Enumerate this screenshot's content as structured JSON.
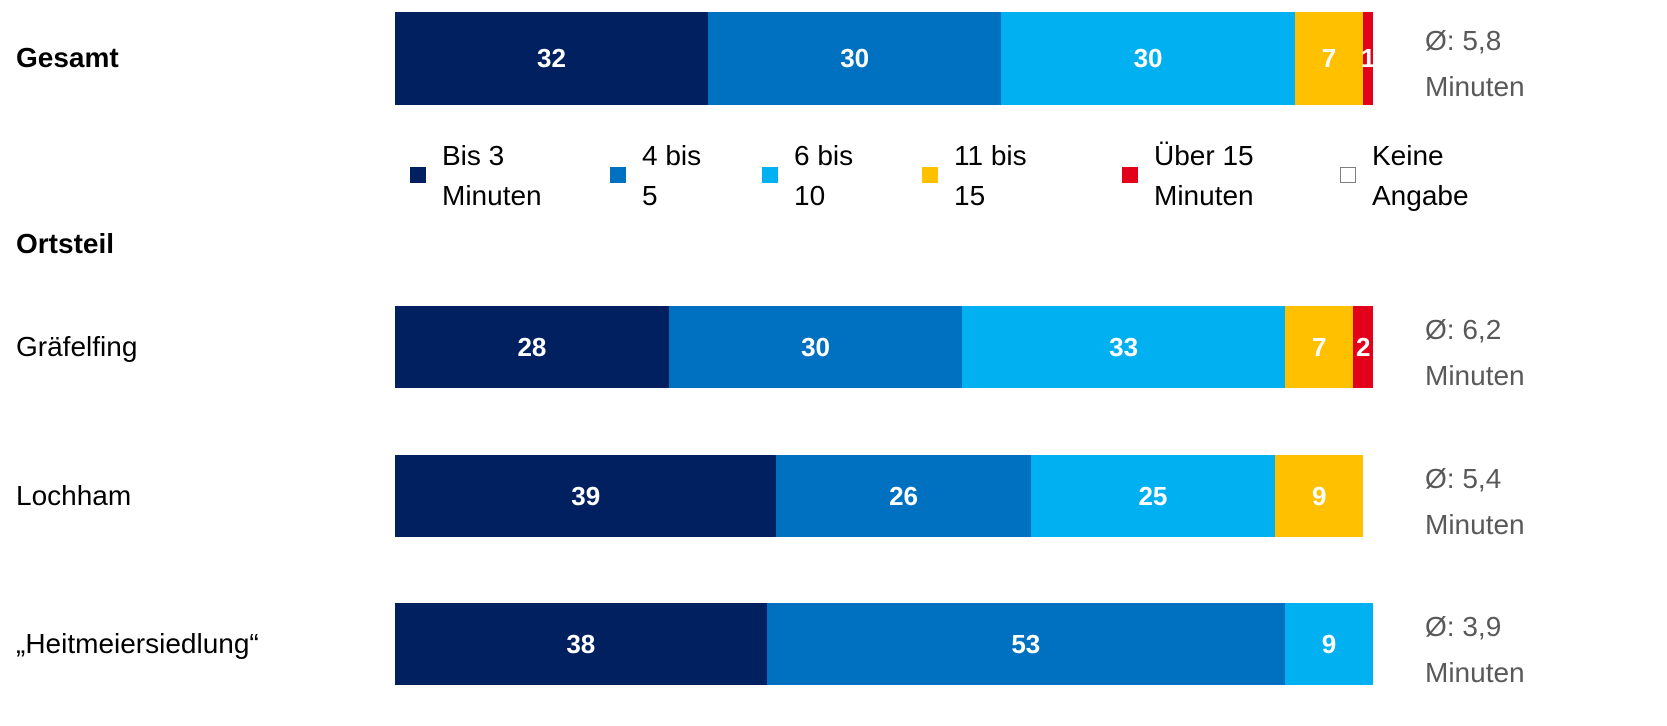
{
  "chart_data": {
    "type": "stacked_bar_horizontal",
    "categories": [
      "Gesamt",
      "Gräfelfing",
      "Lochham",
      "„Heitmeiersiedlung“"
    ],
    "group_label": "Ortsteil",
    "xlim": [
      0,
      100
    ],
    "series": [
      {
        "name": "Bis 3 Minuten",
        "color": "#002060",
        "values": [
          32,
          28,
          39,
          38
        ]
      },
      {
        "name": "4 bis 5",
        "color": "#0070c0",
        "values": [
          30,
          30,
          26,
          53
        ]
      },
      {
        "name": "6 bis 10",
        "color": "#00b0f0",
        "values": [
          30,
          33,
          25,
          9
        ]
      },
      {
        "name": "11 bis 15",
        "color": "#ffc000",
        "values": [
          7,
          7,
          9,
          null
        ]
      },
      {
        "name": "Über 15 Minuten",
        "color": "#e3001b",
        "values": [
          1,
          2,
          null,
          null
        ]
      },
      {
        "name": "Keine Angabe",
        "color": "#ffffff",
        "values": [
          null,
          null,
          null,
          null
        ]
      }
    ],
    "annotations": [
      "Ø: 5,8 Minuten",
      "Ø: 6,2 Minuten",
      "Ø: 5,4 Minuten",
      "Ø: 3,9 Minuten"
    ]
  }
}
